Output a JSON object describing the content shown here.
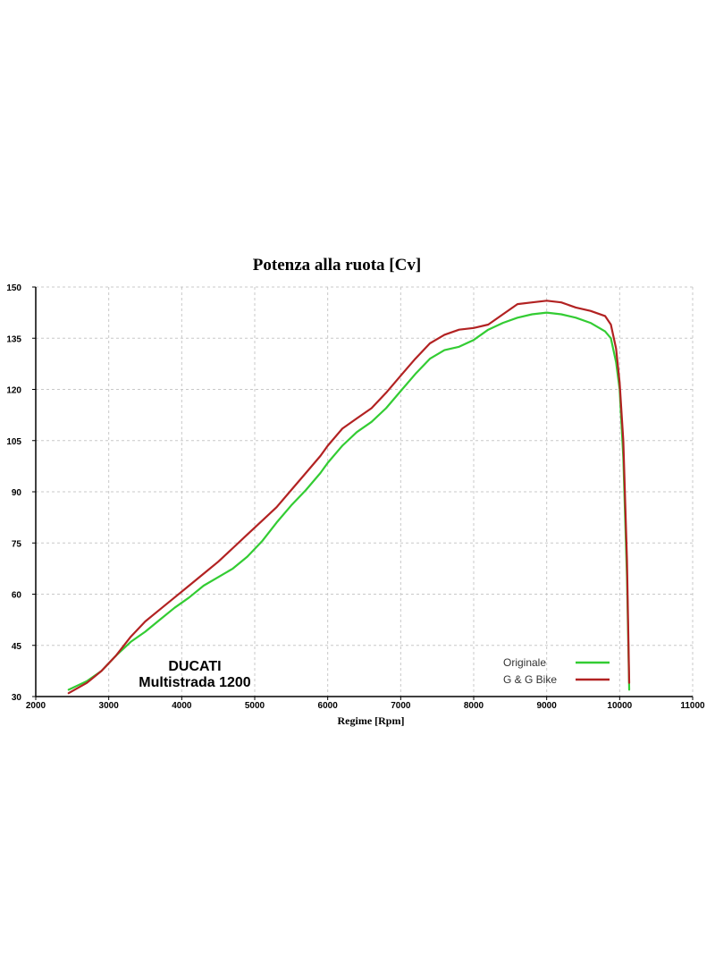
{
  "chart_data": {
    "type": "line",
    "title": "Potenza alla ruota  [Cv]",
    "xlabel": "Regime [Rpm]",
    "ylabel": "",
    "xlim": [
      2000,
      11000
    ],
    "ylim": [
      30,
      150
    ],
    "xticks": [
      2000,
      3000,
      4000,
      5000,
      6000,
      7000,
      8000,
      9000,
      10000,
      11000
    ],
    "yticks": [
      30,
      45,
      60,
      75,
      90,
      105,
      120,
      135,
      150
    ],
    "grid": true,
    "legend_position": "bottom-right",
    "annotation_lines": [
      "DUCATI",
      "Multistrada 1200"
    ],
    "series": [
      {
        "name": "Originale",
        "color": "#33cc33",
        "x": [
          2450,
          2700,
          2900,
          3100,
          3300,
          3500,
          3700,
          3900,
          4100,
          4300,
          4500,
          4700,
          4900,
          5100,
          5300,
          5500,
          5700,
          5900,
          6000,
          6200,
          6400,
          6600,
          6800,
          7000,
          7200,
          7400,
          7600,
          7800,
          8000,
          8200,
          8400,
          8600,
          8800,
          9000,
          9200,
          9400,
          9600,
          9800,
          9880,
          9950,
          10000,
          10050,
          10100,
          10130
        ],
        "y": [
          32,
          34.5,
          37.5,
          42,
          46,
          49,
          52.5,
          56,
          59,
          62.5,
          65,
          67.5,
          71,
          75.5,
          81,
          86,
          90.5,
          95.5,
          98.5,
          103.5,
          107.5,
          110.5,
          114.5,
          119.5,
          124.5,
          129,
          131.5,
          132.5,
          134.5,
          137.5,
          139.5,
          141,
          142,
          142.5,
          142,
          141,
          139.5,
          137,
          135,
          128,
          120,
          100,
          65,
          32
        ]
      },
      {
        "name": "G & G Bike",
        "color": "#b22222",
        "x": [
          2450,
          2700,
          2900,
          3100,
          3300,
          3500,
          3700,
          3900,
          4100,
          4300,
          4500,
          4700,
          4900,
          5100,
          5300,
          5500,
          5700,
          5900,
          6000,
          6200,
          6400,
          6600,
          6800,
          7000,
          7200,
          7400,
          7600,
          7800,
          8000,
          8200,
          8400,
          8600,
          8800,
          9000,
          9200,
          9400,
          9600,
          9800,
          9880,
          9950,
          10000,
          10050,
          10100,
          10130
        ],
        "y": [
          31,
          34,
          37.5,
          42,
          47.5,
          52,
          55.5,
          59,
          62.5,
          66,
          69.5,
          73.5,
          77.5,
          81.5,
          85.5,
          90.5,
          95.5,
          100.5,
          103.5,
          108.5,
          111.5,
          114.5,
          119,
          124,
          129,
          133.5,
          136,
          137.5,
          138,
          139,
          142,
          145,
          145.5,
          146,
          145.5,
          144,
          143,
          141.5,
          139,
          132,
          122,
          105,
          70,
          34
        ]
      }
    ]
  }
}
